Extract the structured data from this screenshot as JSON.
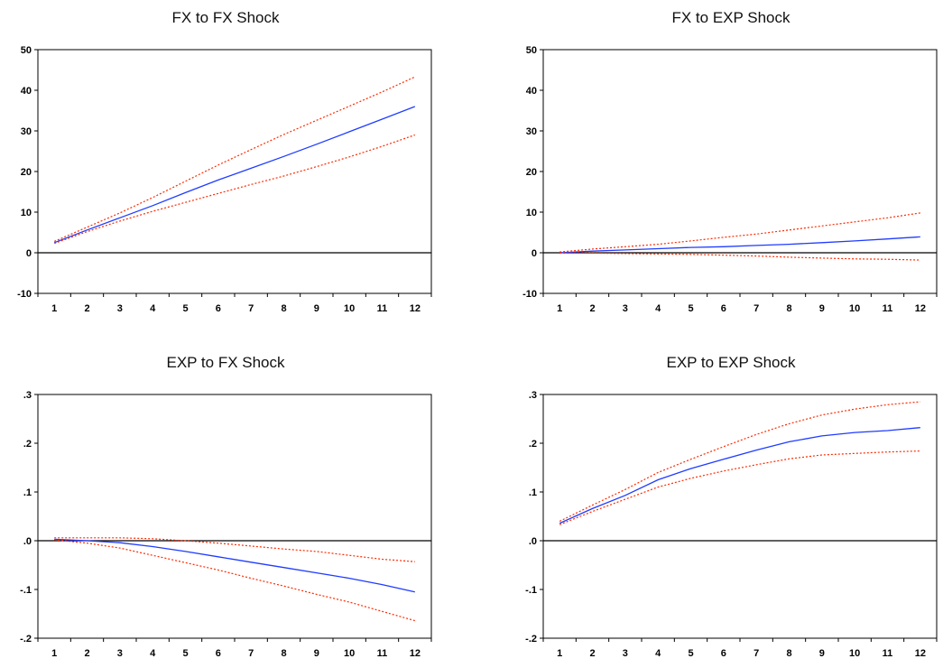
{
  "chart_data": [
    {
      "type": "line",
      "title": "FX to FX Shock",
      "x": [
        1,
        2,
        3,
        4,
        5,
        6,
        7,
        8,
        9,
        10,
        11,
        12
      ],
      "ylim": [
        -10,
        50
      ],
      "yticks": [
        -10,
        0,
        10,
        20,
        30,
        40,
        50
      ],
      "ytick_labels": [
        "-10",
        "0",
        "10",
        "20",
        "30",
        "40",
        "50"
      ],
      "xtick_labels": [
        "1",
        "2",
        "3",
        "4",
        "5",
        "6",
        "7",
        "8",
        "9",
        "10",
        "11",
        "12"
      ],
      "zero_line": true,
      "series": [
        {
          "role": "response",
          "style": "solid",
          "color": "#1f3cff",
          "values": [
            2.5,
            5.6,
            8.6,
            11.6,
            14.8,
            17.9,
            20.8,
            23.7,
            26.7,
            29.8,
            32.9,
            36.0
          ]
        },
        {
          "role": "upper-band",
          "style": "dotted",
          "color": "#ff2a00",
          "values": [
            2.8,
            6.3,
            9.8,
            13.6,
            17.6,
            21.6,
            25.4,
            29.1,
            32.6,
            36.1,
            39.6,
            43.3
          ]
        },
        {
          "role": "lower-band",
          "style": "dotted",
          "color": "#ff2a00",
          "values": [
            2.3,
            5.2,
            7.8,
            10.2,
            12.4,
            14.6,
            16.8,
            18.9,
            21.2,
            23.6,
            26.2,
            29.0
          ]
        }
      ]
    },
    {
      "type": "line",
      "title": "FX to EXP Shock",
      "x": [
        1,
        2,
        3,
        4,
        5,
        6,
        7,
        8,
        9,
        10,
        11,
        12
      ],
      "ylim": [
        -10,
        50
      ],
      "yticks": [
        -10,
        0,
        10,
        20,
        30,
        40,
        50
      ],
      "ytick_labels": [
        "-10",
        "0",
        "10",
        "20",
        "30",
        "40",
        "50"
      ],
      "xtick_labels": [
        "1",
        "2",
        "3",
        "4",
        "5",
        "6",
        "7",
        "8",
        "9",
        "10",
        "11",
        "12"
      ],
      "zero_line": true,
      "series": [
        {
          "role": "response",
          "style": "solid",
          "color": "#1f3cff",
          "values": [
            0.0,
            0.4,
            0.7,
            1.0,
            1.3,
            1.5,
            1.8,
            2.1,
            2.5,
            2.9,
            3.4,
            3.9
          ]
        },
        {
          "role": "upper-band",
          "style": "dotted",
          "color": "#ff2a00",
          "values": [
            0.2,
            0.9,
            1.5,
            2.1,
            2.9,
            3.8,
            4.6,
            5.6,
            6.6,
            7.6,
            8.6,
            9.8
          ]
        },
        {
          "role": "lower-band",
          "style": "dotted",
          "color": "#ff2a00",
          "values": [
            -0.1,
            -0.1,
            -0.2,
            -0.3,
            -0.4,
            -0.6,
            -0.8,
            -1.1,
            -1.3,
            -1.5,
            -1.6,
            -1.8
          ]
        }
      ]
    },
    {
      "type": "line",
      "title": "EXP to FX Shock",
      "x": [
        1,
        2,
        3,
        4,
        5,
        6,
        7,
        8,
        9,
        10,
        11,
        12
      ],
      "ylim": [
        -0.2,
        0.3
      ],
      "yticks": [
        -0.2,
        -0.1,
        0.0,
        0.1,
        0.2,
        0.3
      ],
      "ytick_labels": [
        "-.2",
        "-.1",
        ".0",
        ".1",
        ".2",
        ".3"
      ],
      "xtick_labels": [
        "1",
        "2",
        "3",
        "4",
        "5",
        "6",
        "7",
        "8",
        "9",
        "10",
        "11",
        "12"
      ],
      "zero_line": true,
      "series": [
        {
          "role": "response",
          "style": "solid",
          "color": "#1f3cff",
          "values": [
            0.003,
            0.0,
            -0.004,
            -0.012,
            -0.022,
            -0.033,
            -0.044,
            -0.055,
            -0.066,
            -0.077,
            -0.09,
            -0.105
          ]
        },
        {
          "role": "upper-band",
          "style": "dotted",
          "color": "#ff2a00",
          "values": [
            0.006,
            0.006,
            0.006,
            0.004,
            0.0,
            -0.005,
            -0.011,
            -0.017,
            -0.022,
            -0.03,
            -0.038,
            -0.043
          ]
        },
        {
          "role": "lower-band",
          "style": "dotted",
          "color": "#ff2a00",
          "values": [
            0.002,
            -0.005,
            -0.015,
            -0.03,
            -0.045,
            -0.06,
            -0.077,
            -0.093,
            -0.11,
            -0.126,
            -0.145,
            -0.164
          ]
        }
      ]
    },
    {
      "type": "line",
      "title": "EXP to EXP Shock",
      "x": [
        1,
        2,
        3,
        4,
        5,
        6,
        7,
        8,
        9,
        10,
        11,
        12
      ],
      "ylim": [
        -0.2,
        0.3
      ],
      "yticks": [
        -0.2,
        -0.1,
        0.0,
        0.1,
        0.2,
        0.3
      ],
      "ytick_labels": [
        "-.2",
        "-.1",
        ".0",
        ".1",
        ".2",
        ".3"
      ],
      "xtick_labels": [
        "1",
        "2",
        "3",
        "4",
        "5",
        "6",
        "7",
        "8",
        "9",
        "10",
        "11",
        "12"
      ],
      "zero_line": true,
      "series": [
        {
          "role": "response",
          "style": "solid",
          "color": "#1f3cff",
          "values": [
            0.036,
            0.066,
            0.093,
            0.125,
            0.148,
            0.167,
            0.186,
            0.203,
            0.215,
            0.222,
            0.226,
            0.232
          ]
        },
        {
          "role": "upper-band",
          "style": "dotted",
          "color": "#ff2a00",
          "values": [
            0.04,
            0.073,
            0.105,
            0.14,
            0.167,
            0.193,
            0.218,
            0.24,
            0.258,
            0.27,
            0.279,
            0.285
          ]
        },
        {
          "role": "lower-band",
          "style": "dotted",
          "color": "#ff2a00",
          "values": [
            0.033,
            0.06,
            0.085,
            0.11,
            0.128,
            0.143,
            0.156,
            0.168,
            0.176,
            0.179,
            0.182,
            0.184
          ]
        }
      ]
    }
  ]
}
